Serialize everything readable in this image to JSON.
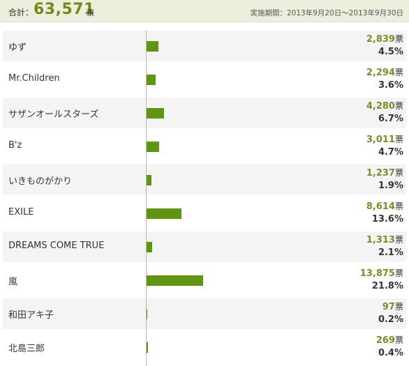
{
  "header": {
    "total_label": "合計：",
    "total_value": "63,571",
    "total_unit": "票",
    "period": "実施期間：2013年9月20日～2013年9月30日"
  },
  "chart_data": {
    "type": "bar",
    "orientation": "horizontal",
    "vote_unit": "票",
    "categories": [
      "ゆず",
      "Mr.Children",
      "サザンオールスターズ",
      "B'z",
      "いきものがかり",
      "EXILE",
      "DREAMS COME TRUE",
      "嵐",
      "和田アキ子",
      "北島三郎"
    ],
    "values": [
      2839,
      2294,
      4280,
      3011,
      1237,
      8614,
      1313,
      13875,
      97,
      269
    ],
    "value_labels": [
      "2,839",
      "2,294",
      "4,280",
      "3,011",
      "1,237",
      "8,614",
      "1,313",
      "13,875",
      "97",
      "269"
    ],
    "percent_labels": [
      "4.5%",
      "3.6%",
      "6.7%",
      "4.7%",
      "1.9%",
      "13.6%",
      "2.1%",
      "21.8%",
      "0.2%",
      "0.4%"
    ],
    "xlim": [
      0,
      63571
    ],
    "colors": {
      "bar": "#5f9610",
      "votes": "#7a8c28",
      "accent": "#6e8c1e"
    }
  }
}
